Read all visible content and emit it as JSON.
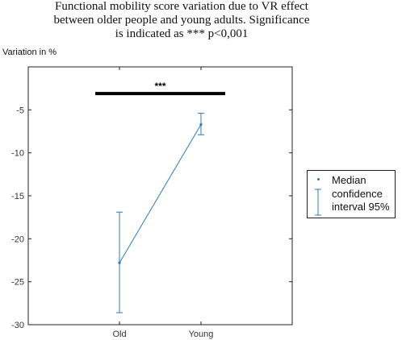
{
  "chart_data": {
    "type": "line",
    "title": "Functional mobility score variation due to VR effect between older people and young adults. Significance is indicated as *** p<0,001",
    "ylabel": "Variation in %",
    "categories": [
      "Old",
      "Young"
    ],
    "ylim": [
      -30,
      0
    ],
    "yticks": [
      -30,
      -25,
      -20,
      -15,
      -10,
      -5
    ],
    "series": [
      {
        "name": "Median",
        "values": [
          -22.8,
          -6.7
        ],
        "ci_low": [
          -28.6,
          -7.9
        ],
        "ci_high": [
          -16.9,
          -5.4
        ]
      }
    ],
    "significance": {
      "label": "***",
      "y": -3.1,
      "from": "Old",
      "to": "Young"
    },
    "legend": {
      "position": "right",
      "median_label": "Median",
      "ci_label_line1": "confidence",
      "ci_label_line2": "interval 95%"
    },
    "line_color": "#2b7bba",
    "grid": false
  }
}
